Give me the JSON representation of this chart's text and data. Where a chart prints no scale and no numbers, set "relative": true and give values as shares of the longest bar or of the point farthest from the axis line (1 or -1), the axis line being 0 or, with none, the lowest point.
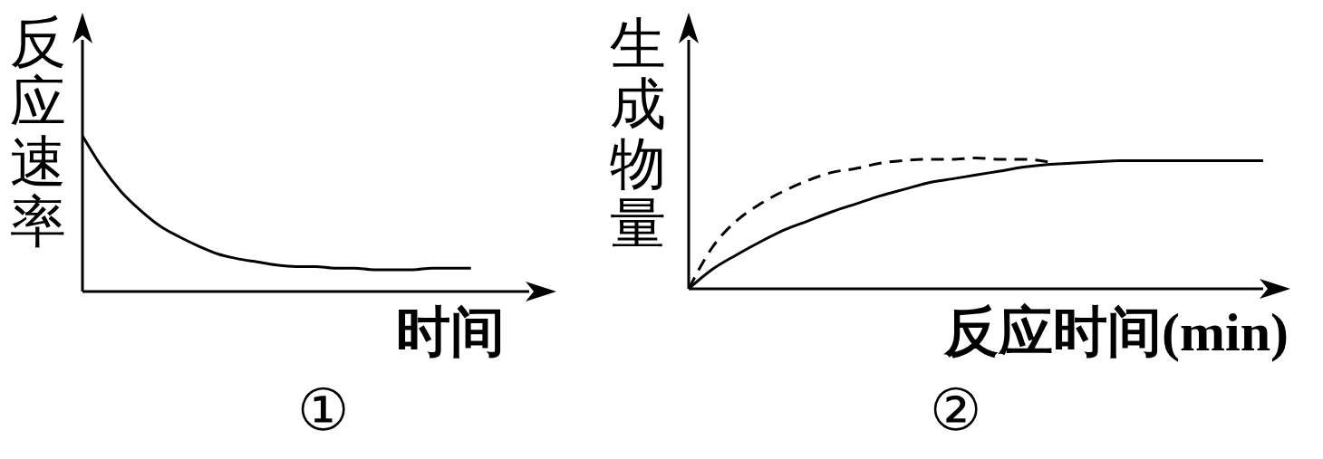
{
  "chart_data": [
    {
      "type": "line",
      "title": "①",
      "xlabel": "时间",
      "ylabel": "反应速率",
      "relative": true,
      "categories": [
        null,
        null,
        null,
        null,
        null,
        null,
        null,
        null,
        null,
        null,
        null,
        null,
        null,
        null,
        null,
        null,
        null,
        null,
        null,
        null,
        null,
        null,
        null,
        null
      ],
      "values": [
        1,
        0.8,
        0.64,
        0.52,
        0.42,
        0.35,
        0.29,
        0.24,
        0.21,
        0.19,
        0.17,
        0.16,
        0.16,
        0.15,
        0.15,
        0.14,
        0.14,
        0.14,
        0.15,
        0.15,
        0.15,
        null,
        null,
        null
      ],
      "color": "#000000",
      "marker": "none"
    },
    {
      "type": "line",
      "title": "②",
      "xlabel": "反应时间(min)",
      "ylabel": "生成物量",
      "relative": true,
      "categories": [
        null,
        null,
        null,
        null,
        null,
        null,
        null,
        null,
        null,
        null,
        null,
        null,
        null,
        null,
        null,
        null,
        null,
        null,
        null,
        null,
        null,
        null,
        null,
        null,
        null
      ],
      "series": [
        {
          "color": "#000000",
          "line_style": "dashed",
          "values": [
            0,
            0.32,
            0.52,
            0.65,
            0.75,
            0.83,
            0.89,
            0.92,
            0.96,
            0.98,
            0.99,
            0.99,
            1,
            0.99,
            0.99,
            0.97,
            null,
            null,
            null,
            null,
            null,
            null,
            null,
            null,
            null
          ]
        },
        {
          "color": "#000000",
          "line_style": "solid",
          "values": [
            0,
            0.15,
            0.26,
            0.36,
            0.45,
            0.52,
            0.59,
            0.65,
            0.71,
            0.76,
            0.81,
            0.84,
            0.87,
            0.9,
            0.93,
            0.95,
            0.96,
            0.97,
            0.98,
            0.98,
            0.98,
            0.98,
            0.98,
            0.98,
            0.98
          ]
        }
      ],
      "marker": "none"
    }
  ]
}
